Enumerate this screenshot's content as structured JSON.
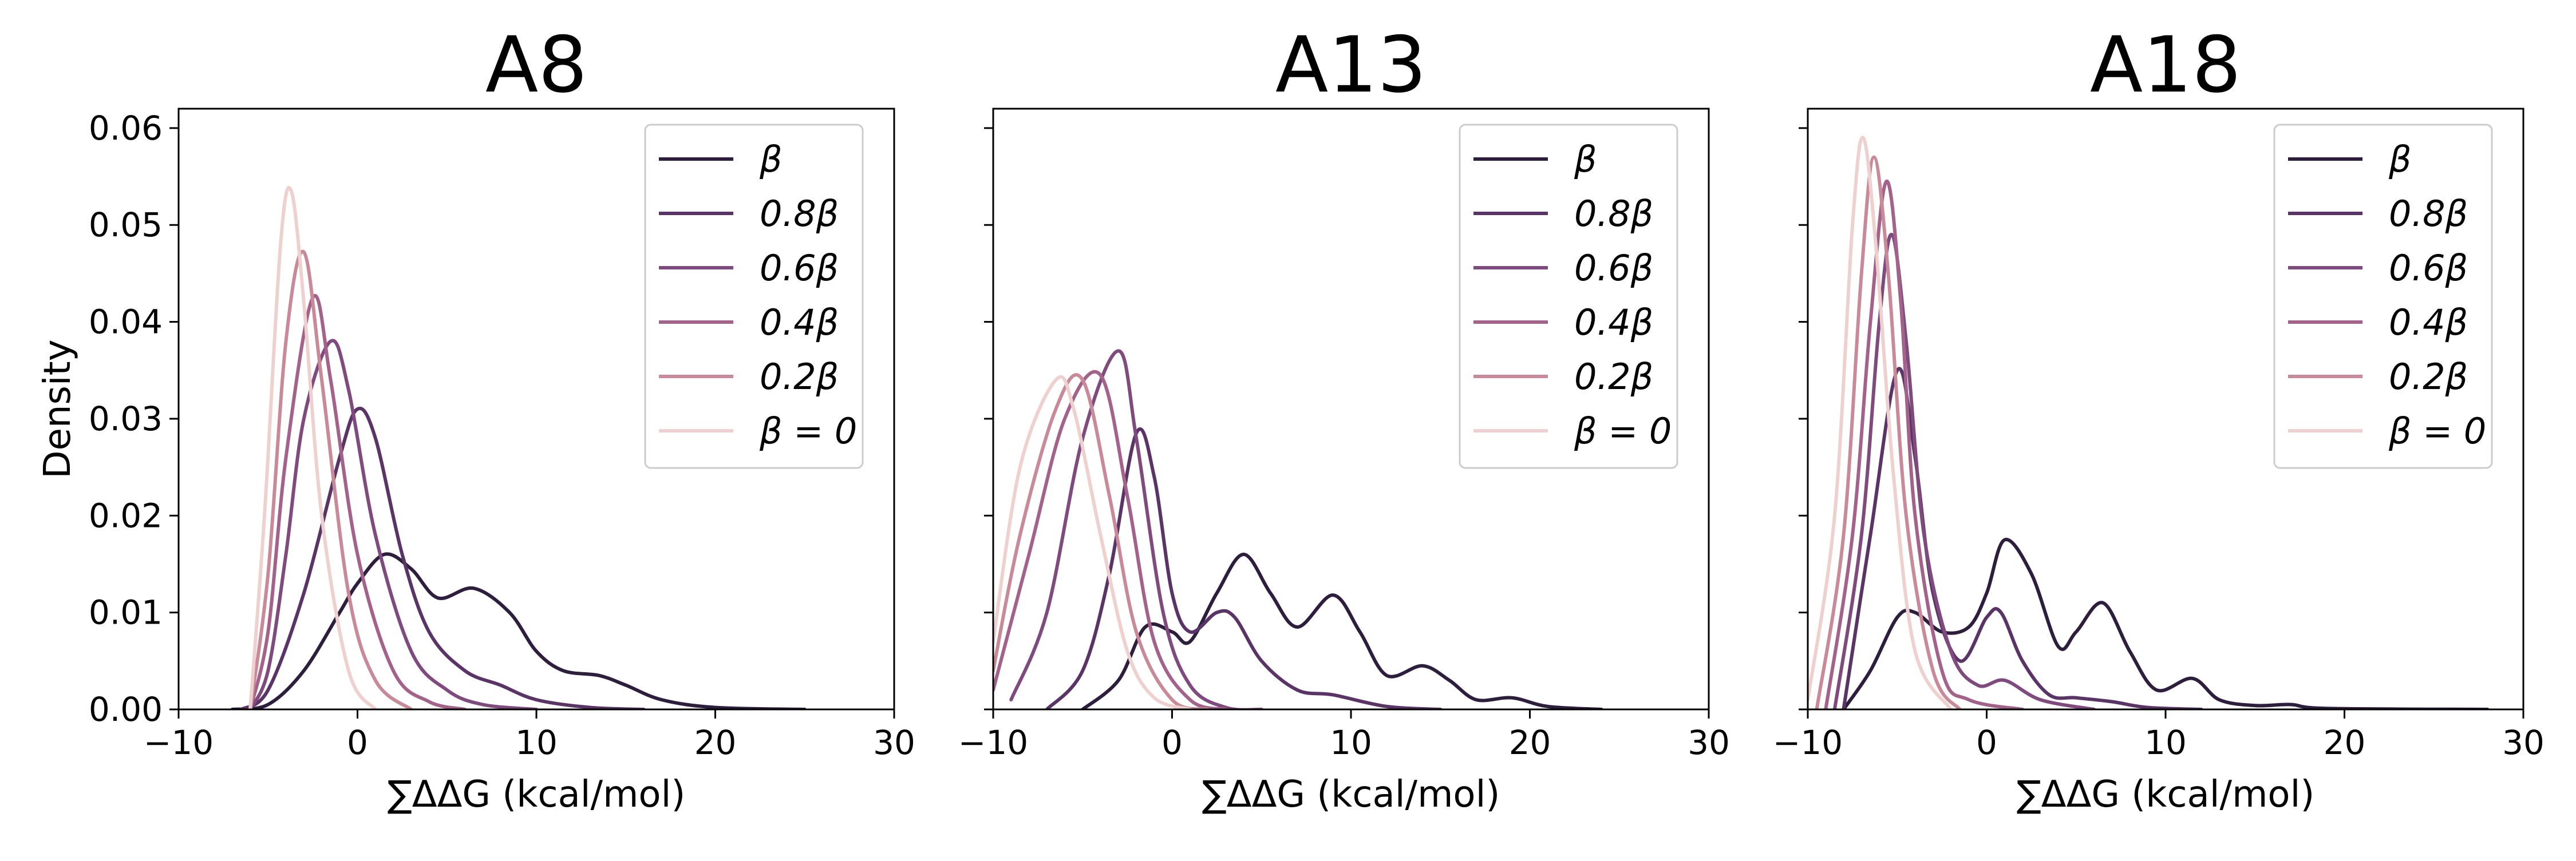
{
  "chart_data": [
    {
      "type": "line",
      "title": "A8",
      "xlabel": "∑ΔΔG (kcal/mol)",
      "ylabel": "Density",
      "xlim": [
        -10,
        30
      ],
      "ylim": [
        0,
        0.062
      ],
      "xticks": [
        -10,
        0,
        10,
        20,
        30
      ],
      "xtick_labels": [
        "−10",
        "0",
        "10",
        "20",
        "30"
      ],
      "yticks": [
        0,
        0.01,
        0.02,
        0.03,
        0.04,
        0.05,
        0.06
      ],
      "ytick_labels": [
        "0.00",
        "0.01",
        "0.02",
        "0.03",
        "0.04",
        "0.05",
        "0.06"
      ],
      "grid": false,
      "legend_position": "top-right",
      "series": [
        {
          "name": "β",
          "color": "#2d1e3e",
          "points": [
            [
              -7,
              0
            ],
            [
              -5,
              0.0005
            ],
            [
              -3,
              0.004
            ],
            [
              -1,
              0.01
            ],
            [
              0,
              0.013
            ],
            [
              1.5,
              0.016
            ],
            [
              3,
              0.0145
            ],
            [
              4.5,
              0.0115
            ],
            [
              6.5,
              0.0125
            ],
            [
              8.5,
              0.01
            ],
            [
              10,
              0.006
            ],
            [
              11.5,
              0.004
            ],
            [
              13.5,
              0.0035
            ],
            [
              15,
              0.0025
            ],
            [
              17,
              0.001
            ],
            [
              20,
              0.0002
            ],
            [
              25,
              0
            ]
          ]
        },
        {
          "name": "0.8β",
          "color": "#5a3466",
          "points": [
            [
              -6.5,
              0
            ],
            [
              -5,
              0.002
            ],
            [
              -3,
              0.012
            ],
            [
              -1,
              0.026
            ],
            [
              0,
              0.031
            ],
            [
              1,
              0.028
            ],
            [
              2.5,
              0.016
            ],
            [
              4,
              0.008
            ],
            [
              6,
              0.004
            ],
            [
              8,
              0.0025
            ],
            [
              10,
              0.001
            ],
            [
              13,
              0.0002
            ],
            [
              16,
              0
            ]
          ]
        },
        {
          "name": "0.6β",
          "color": "#7f4a7e",
          "points": [
            [
              -6,
              0
            ],
            [
              -5,
              0.004
            ],
            [
              -4,
              0.016
            ],
            [
              -3,
              0.03
            ],
            [
              -1.5,
              0.038
            ],
            [
              -0.5,
              0.033
            ],
            [
              1,
              0.018
            ],
            [
              3,
              0.006
            ],
            [
              5,
              0.002
            ],
            [
              7,
              0.0005
            ],
            [
              10,
              0
            ]
          ]
        },
        {
          "name": "0.4β",
          "color": "#a2628a",
          "points": [
            [
              -6,
              0
            ],
            [
              -5,
              0.008
            ],
            [
              -4,
              0.026
            ],
            [
              -2.5,
              0.0425
            ],
            [
              -1.5,
              0.034
            ],
            [
              0,
              0.016
            ],
            [
              2,
              0.004
            ],
            [
              4,
              0.0008
            ],
            [
              6,
              0
            ]
          ]
        },
        {
          "name": "0.2β",
          "color": "#c88a99",
          "points": [
            [
              -6,
              0
            ],
            [
              -5,
              0.014
            ],
            [
              -4,
              0.038
            ],
            [
              -3,
              0.0472
            ],
            [
              -2,
              0.034
            ],
            [
              -0.5,
              0.012
            ],
            [
              1,
              0.003
            ],
            [
              3,
              0
            ]
          ]
        },
        {
          "name": "β = 0",
          "color": "#eed1cf",
          "points": [
            [
              -6,
              0
            ],
            [
              -5.2,
              0.02
            ],
            [
              -4.3,
              0.048
            ],
            [
              -3.7,
              0.0535
            ],
            [
              -3,
              0.042
            ],
            [
              -2,
              0.02
            ],
            [
              -0.5,
              0.004
            ],
            [
              1,
              0
            ]
          ]
        }
      ]
    },
    {
      "type": "line",
      "title": "A13",
      "xlabel": "∑ΔΔG (kcal/mol)",
      "ylabel": "",
      "xlim": [
        -10,
        30
      ],
      "ylim": [
        0,
        0.062
      ],
      "xticks": [
        -10,
        0,
        10,
        20,
        30
      ],
      "xtick_labels": [
        "−10",
        "0",
        "10",
        "20",
        "30"
      ],
      "yticks": [
        0,
        0.01,
        0.02,
        0.03,
        0.04,
        0.05,
        0.06
      ],
      "ytick_labels": [],
      "grid": false,
      "legend_position": "top-right",
      "series": [
        {
          "name": "β",
          "color": "#2d1e3e",
          "points": [
            [
              -5,
              0
            ],
            [
              -3,
              0.003
            ],
            [
              -1.5,
              0.0085
            ],
            [
              0,
              0.008
            ],
            [
              1,
              0.007
            ],
            [
              2.5,
              0.012
            ],
            [
              4,
              0.016
            ],
            [
              5.5,
              0.012
            ],
            [
              7,
              0.0085
            ],
            [
              9,
              0.0118
            ],
            [
              10.5,
              0.008
            ],
            [
              12,
              0.0035
            ],
            [
              14,
              0.0045
            ],
            [
              15.5,
              0.003
            ],
            [
              17,
              0.001
            ],
            [
              19,
              0.0012
            ],
            [
              21,
              0.0003
            ],
            [
              24,
              0
            ]
          ]
        },
        {
          "name": "0.8β",
          "color": "#5a3466",
          "points": [
            [
              -7,
              0
            ],
            [
              -5,
              0.004
            ],
            [
              -3.5,
              0.014
            ],
            [
              -2,
              0.0285
            ],
            [
              -1,
              0.024
            ],
            [
              0,
              0.012
            ],
            [
              1,
              0.008
            ],
            [
              2.5,
              0.01
            ],
            [
              3.5,
              0.0095
            ],
            [
              5,
              0.005
            ],
            [
              7,
              0.002
            ],
            [
              9,
              0.0015
            ],
            [
              12,
              0.0003
            ],
            [
              15,
              0
            ]
          ]
        },
        {
          "name": "0.6β",
          "color": "#7f4a7e",
          "points": [
            [
              -9,
              0.001
            ],
            [
              -7,
              0.01
            ],
            [
              -5,
              0.028
            ],
            [
              -3,
              0.037
            ],
            [
              -2,
              0.028
            ],
            [
              -0.5,
              0.01
            ],
            [
              1,
              0.0025
            ],
            [
              3,
              0.0002
            ],
            [
              5,
              0
            ]
          ]
        },
        {
          "name": "0.4β",
          "color": "#a2628a",
          "points": [
            [
              -10,
              0.002
            ],
            [
              -8,
              0.016
            ],
            [
              -6,
              0.03
            ],
            [
              -4,
              0.0345
            ],
            [
              -2.5,
              0.022
            ],
            [
              -1,
              0.007
            ],
            [
              1,
              0.001
            ],
            [
              3,
              0
            ]
          ]
        },
        {
          "name": "0.2β",
          "color": "#c88a99",
          "points": [
            [
              -10,
              0.004
            ],
            [
              -8.5,
              0.018
            ],
            [
              -6.5,
              0.031
            ],
            [
              -5,
              0.034
            ],
            [
              -3.5,
              0.022
            ],
            [
              -2,
              0.008
            ],
            [
              0,
              0.001
            ],
            [
              2,
              0
            ]
          ]
        },
        {
          "name": "β = 0",
          "color": "#eed1cf",
          "points": [
            [
              -10,
              0.007
            ],
            [
              -8.5,
              0.025
            ],
            [
              -6.5,
              0.034
            ],
            [
              -5.5,
              0.031
            ],
            [
              -4,
              0.018
            ],
            [
              -2.5,
              0.006
            ],
            [
              -1,
              0.0012
            ],
            [
              1,
              0
            ]
          ]
        }
      ]
    },
    {
      "type": "line",
      "title": "A18",
      "xlabel": "∑ΔΔG (kcal/mol)",
      "ylabel": "",
      "xlim": [
        -10,
        30
      ],
      "ylim": [
        0,
        0.062
      ],
      "xticks": [
        -10,
        0,
        10,
        20,
        30
      ],
      "xtick_labels": [
        "−10",
        "0",
        "10",
        "20",
        "30"
      ],
      "yticks": [
        0,
        0.01,
        0.02,
        0.03,
        0.04,
        0.05,
        0.06
      ],
      "ytick_labels": [],
      "grid": false,
      "legend_position": "top-right",
      "series": [
        {
          "name": "β",
          "color": "#2d1e3e",
          "points": [
            [
              -8,
              0
            ],
            [
              -6.5,
              0.004
            ],
            [
              -5,
              0.0095
            ],
            [
              -4,
              0.01
            ],
            [
              -2.5,
              0.008
            ],
            [
              -1,
              0.0085
            ],
            [
              0,
              0.012
            ],
            [
              1,
              0.0175
            ],
            [
              2.5,
              0.014
            ],
            [
              4,
              0.0065
            ],
            [
              5,
              0.008
            ],
            [
              6.5,
              0.011
            ],
            [
              8,
              0.006
            ],
            [
              9.5,
              0.002
            ],
            [
              11.5,
              0.0032
            ],
            [
              13,
              0.001
            ],
            [
              15,
              0.0004
            ],
            [
              17,
              0.0005
            ],
            [
              19,
              0.0001
            ],
            [
              28,
              0
            ]
          ]
        },
        {
          "name": "0.8β",
          "color": "#5a3466",
          "points": [
            [
              -8,
              0
            ],
            [
              -6.5,
              0.018
            ],
            [
              -5,
              0.035
            ],
            [
              -4,
              0.026
            ],
            [
              -3,
              0.012
            ],
            [
              -1.5,
              0.005
            ],
            [
              0,
              0.0095
            ],
            [
              0.8,
              0.01
            ],
            [
              2,
              0.005
            ],
            [
              3.5,
              0.0015
            ],
            [
              5,
              0.0012
            ],
            [
              7,
              0.0008
            ],
            [
              9,
              0.0002
            ],
            [
              12,
              0
            ]
          ]
        },
        {
          "name": "0.6β",
          "color": "#7f4a7e",
          "points": [
            [
              -8.5,
              0
            ],
            [
              -7,
              0.018
            ],
            [
              -6,
              0.04
            ],
            [
              -5.3,
              0.049
            ],
            [
              -4.5,
              0.038
            ],
            [
              -3.5,
              0.018
            ],
            [
              -2,
              0.006
            ],
            [
              -0.5,
              0.0025
            ],
            [
              1,
              0.003
            ],
            [
              3,
              0.001
            ],
            [
              6,
              0
            ]
          ]
        },
        {
          "name": "0.4β",
          "color": "#a2628a",
          "points": [
            [
              -9,
              0
            ],
            [
              -7.5,
              0.018
            ],
            [
              -6.5,
              0.04
            ],
            [
              -5.6,
              0.0545
            ],
            [
              -4.8,
              0.042
            ],
            [
              -4,
              0.02
            ],
            [
              -2.5,
              0.004
            ],
            [
              -1,
              0.001
            ],
            [
              2,
              0
            ]
          ]
        },
        {
          "name": "0.2β",
          "color": "#c88a99",
          "points": [
            [
              -9.5,
              0
            ],
            [
              -8,
              0.018
            ],
            [
              -7,
              0.045
            ],
            [
              -6.3,
              0.057
            ],
            [
              -5.5,
              0.045
            ],
            [
              -4.5,
              0.02
            ],
            [
              -3,
              0.004
            ],
            [
              -1.5,
              0
            ]
          ]
        },
        {
          "name": "β = 0",
          "color": "#eed1cf",
          "points": [
            [
              -10,
              0.001
            ],
            [
              -8.5,
              0.02
            ],
            [
              -7.5,
              0.05
            ],
            [
              -6.9,
              0.059
            ],
            [
              -6.2,
              0.048
            ],
            [
              -5.2,
              0.024
            ],
            [
              -4,
              0.006
            ],
            [
              -2,
              0
            ]
          ]
        }
      ]
    }
  ]
}
